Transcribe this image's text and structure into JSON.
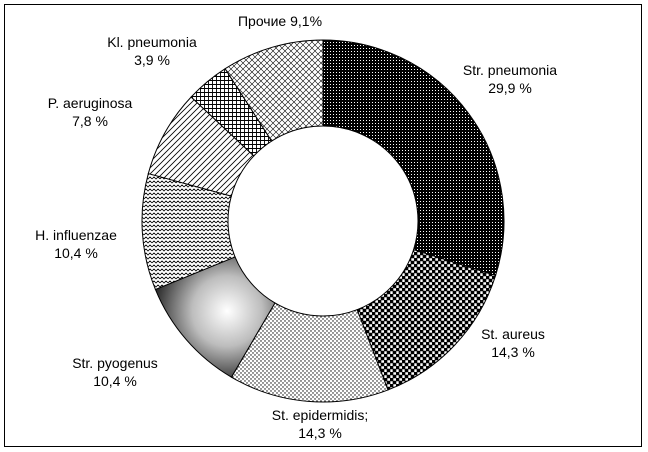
{
  "chart_data": {
    "type": "pie",
    "style": "donut",
    "title": "",
    "labels": [
      "Str. pneumonia",
      "St. aureus",
      "St. epidermidis;",
      "Str. pyogenus",
      "H. influenzae",
      "P. aeruginosa",
      "Kl. pneumonia",
      "Прочие"
    ],
    "values": [
      29.9,
      14.3,
      14.3,
      10.4,
      10.4,
      7.8,
      3.9,
      9.1
    ],
    "value_labels": [
      "29,9 %",
      "14,3 %",
      "14,3 %",
      "10,4 %",
      "10,4 %",
      "7,8 %",
      "3,9 %",
      "9,1%"
    ],
    "fills": [
      "dense-dots-dark",
      "checker-grid",
      "fine-dots",
      "radial-gradient-gray",
      "zigzag-lines",
      "diagonal-stripes",
      "square-grid",
      "diagonal-cross"
    ],
    "stroke_color": "#000000",
    "background": "#ffffff"
  }
}
